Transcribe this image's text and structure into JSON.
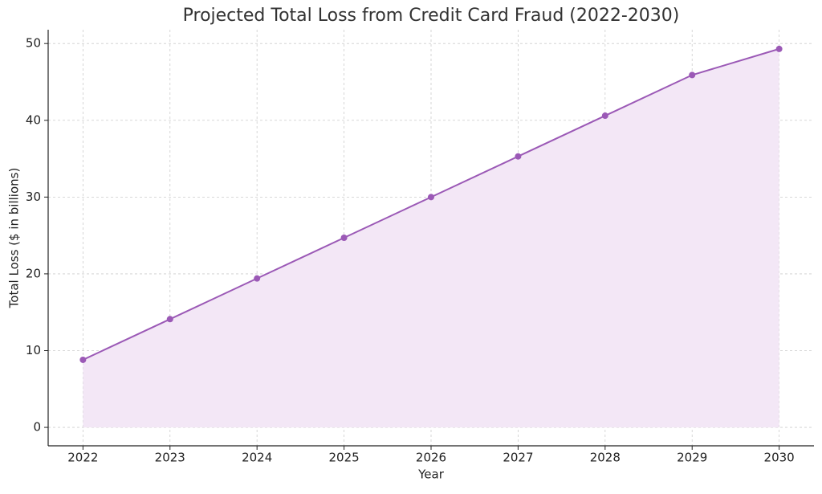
{
  "chart_data": {
    "type": "area-line",
    "title": "Projected Total Loss from Credit Card Fraud (2022-2030)",
    "x_label": "Year",
    "y_label": "Total Loss ($ in billions)",
    "x": [
      2022,
      2023,
      2024,
      2025,
      2026,
      2027,
      2028,
      2029,
      2030
    ],
    "series": [
      {
        "name": "Total Loss",
        "color": "#9b59b6",
        "fill": "#f3e7f6",
        "values": [
          8.8,
          14.1,
          19.4,
          24.7,
          30.0,
          35.3,
          40.6,
          45.9,
          49.3
        ]
      }
    ],
    "xlim": [
      2021.6,
      2030.4
    ],
    "xticks": [
      2022,
      2023,
      2024,
      2025,
      2026,
      2027,
      2028,
      2029,
      2030
    ],
    "ylim": [
      -2.4,
      51.8
    ],
    "yticks": [
      0,
      10,
      20,
      30,
      40,
      50
    ],
    "grid": true
  }
}
